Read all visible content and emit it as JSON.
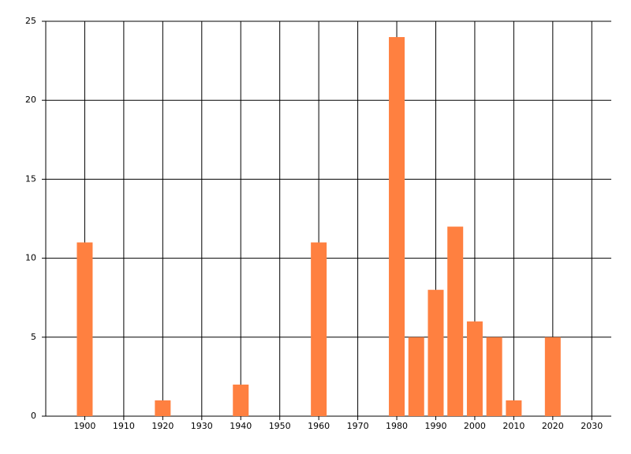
{
  "chart_data": {
    "type": "bar",
    "x": [
      1900,
      1920,
      1940,
      1960,
      1980,
      1985,
      1990,
      1995,
      2000,
      2005,
      2010,
      2020
    ],
    "values": [
      11,
      1,
      2,
      11,
      24,
      5,
      8,
      12,
      6,
      5,
      1,
      5
    ],
    "color": "#ff8040",
    "xlim": [
      1890,
      2035
    ],
    "xticks": [
      1900,
      1910,
      1920,
      1930,
      1940,
      1950,
      1960,
      1970,
      1980,
      1990,
      2000,
      2010,
      2020,
      2030
    ],
    "ylim": [
      0,
      25
    ],
    "yticks": [
      0,
      5,
      10,
      15,
      20,
      25
    ],
    "grid": true
  }
}
